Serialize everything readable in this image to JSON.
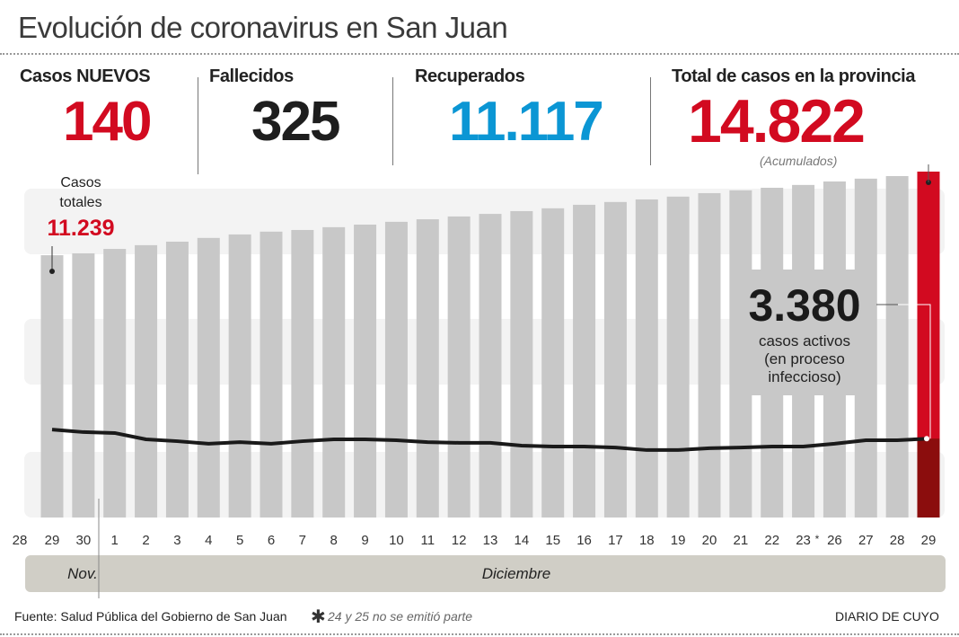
{
  "title": "Evolución de coronavirus en San Juan",
  "stats": [
    {
      "label": "Casos NUEVOS",
      "value": "140",
      "color": "#d20a20"
    },
    {
      "label": "Fallecidos",
      "value": "325",
      "color": "#1e1e1e"
    },
    {
      "label": "Recuperados",
      "value": "11.117",
      "color": "#0b96d4"
    },
    {
      "label": "Total de casos en la provincia",
      "value": "14.822",
      "color": "#d20a20",
      "note": "(Acumulados)"
    }
  ],
  "chart_data": {
    "type": "bar",
    "categories": [
      "29",
      "30",
      "1",
      "2",
      "3",
      "4",
      "5",
      "6",
      "7",
      "8",
      "9",
      "10",
      "11",
      "12",
      "13",
      "14",
      "15",
      "16",
      "17",
      "18",
      "19",
      "20",
      "21",
      "22",
      "23",
      "26",
      "27",
      "28",
      "29"
    ],
    "tick_labels": [
      "28",
      "29",
      "30",
      "1",
      "2",
      "3",
      "4",
      "5",
      "6",
      "7",
      "8",
      "9",
      "10",
      "11",
      "12",
      "13",
      "14",
      "15",
      "16",
      "17",
      "18",
      "19",
      "20",
      "21",
      "22",
      "23",
      "26",
      "27",
      "28",
      "29"
    ],
    "skip_marker": "*",
    "series": [
      {
        "name": "Casos totales",
        "type": "bar",
        "values": [
          11239,
          11320,
          11510,
          11670,
          11820,
          11980,
          12130,
          12250,
          12320,
          12440,
          12550,
          12670,
          12780,
          12900,
          13010,
          13130,
          13250,
          13400,
          13520,
          13630,
          13750,
          13900,
          14020,
          14130,
          14250,
          14400,
          14520,
          14630,
          14822
        ]
      },
      {
        "name": "casos activos",
        "type": "line",
        "values": [
          3770,
          3660,
          3620,
          3350,
          3270,
          3160,
          3230,
          3160,
          3270,
          3350,
          3350,
          3310,
          3230,
          3200,
          3200,
          3080,
          3040,
          3040,
          3000,
          2890,
          2890,
          2970,
          3000,
          3040,
          3040,
          3160,
          3310,
          3310,
          3380
        ]
      }
    ],
    "ylim": [
      0,
      14822
    ],
    "grid": false,
    "colors": {
      "bar": "#c8c8c8",
      "highlight": "#d20a20",
      "highlight_dark": "#8b0d0d",
      "line": "#1a1a1a",
      "band": "#f3f3f3"
    },
    "annotations": {
      "first_label": "Casos\ntotales",
      "first_label_line1": "Casos",
      "first_label_line2": "totales",
      "first_value": "11.239",
      "active_value": "3.380",
      "active_line1": "casos activos",
      "active_line2": "(en proceso",
      "active_line3": "infeccioso)"
    },
    "months": [
      {
        "label": "Nov."
      },
      {
        "label": "Diciembre"
      }
    ]
  },
  "footer": {
    "source": "Fuente: Salud Pública del Gobierno de San Juan",
    "note_icon": "asterisk-icon",
    "note": "24 y 25 no se emitió parte",
    "brand": "DIARIO DE CUYO"
  }
}
